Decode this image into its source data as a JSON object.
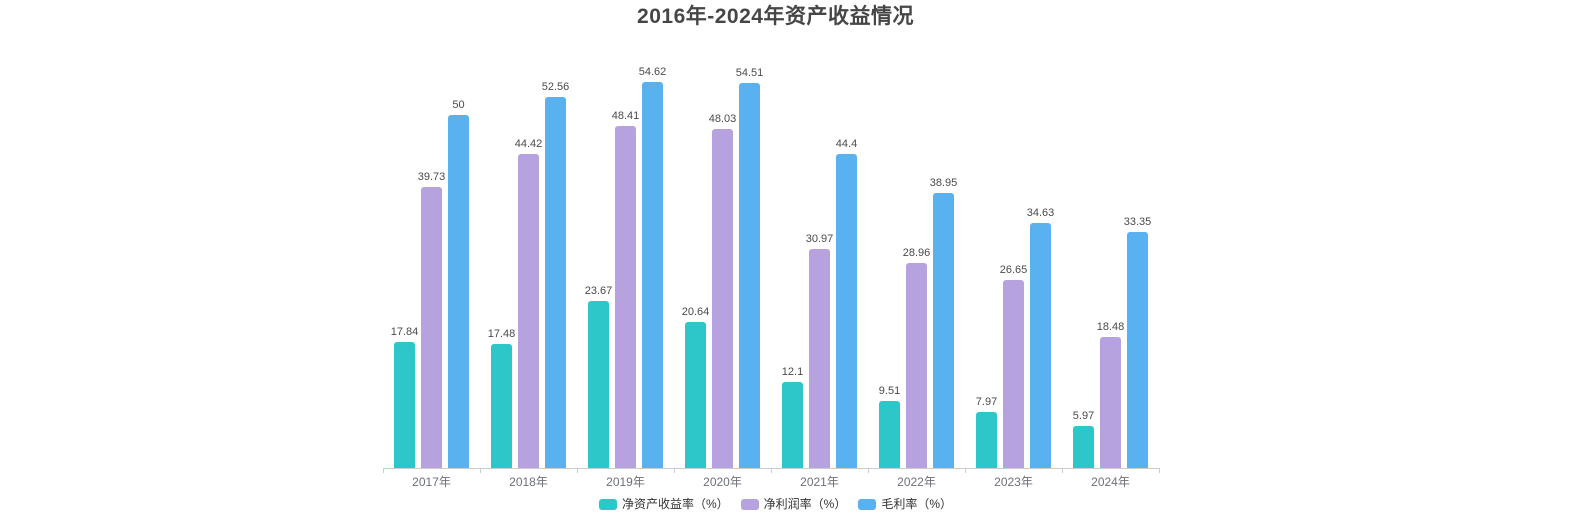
{
  "title": "2016年-2024年资产收益情况",
  "chart_data": {
    "type": "bar",
    "title": "2016年-2024年资产收益情况",
    "categories": [
      "2017年",
      "2018年",
      "2019年",
      "2020年",
      "2021年",
      "2022年",
      "2023年",
      "2024年"
    ],
    "series": [
      {
        "name": "净资产收益率（%）",
        "color": "#2ec7c9",
        "values": [
          17.84,
          17.48,
          23.67,
          20.64,
          12.1,
          9.51,
          7.97,
          5.97
        ]
      },
      {
        "name": "净利润率（%）",
        "color": "#b6a2de",
        "values": [
          39.73,
          44.42,
          48.41,
          48.03,
          30.97,
          28.96,
          26.65,
          18.48
        ]
      },
      {
        "name": "毛利率（%）",
        "color": "#5ab1ef",
        "values": [
          50,
          52.56,
          54.62,
          54.51,
          44.4,
          38.95,
          34.63,
          33.35
        ]
      }
    ],
    "xlabel": "",
    "ylabel": "",
    "ylim": [
      0,
      54.62
    ],
    "grid": false,
    "y_axis_visible": false,
    "value_labels": true,
    "legend_position": "bottom"
  },
  "colors": {
    "background": "#ffffff",
    "title_text": "#464646",
    "axis_line": "#cccccc",
    "axis_label": "#6e7079",
    "value_label": "#4a4a4a",
    "legend_text": "#333333"
  }
}
